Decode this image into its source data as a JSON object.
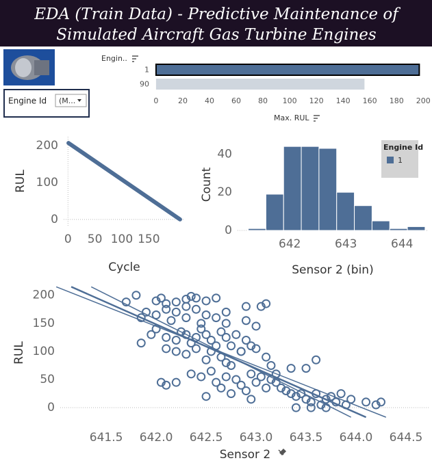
{
  "header": {
    "title_lines": [
      "EDA (Train Data) - Predictive Maintenance of",
      "Simulated Aircraft Gas Turbine Engines"
    ]
  },
  "filter": {
    "label": "Engine Id",
    "value": "(M..."
  },
  "chart_data": [
    {
      "type": "bar",
      "orientation": "horizontal",
      "category_header": "Engin..",
      "x_label": "Max. RUL",
      "categories": [
        "1",
        "90"
      ],
      "values": [
        197,
        156
      ],
      "colors": [
        "#4e6e96",
        "#cfd6de"
      ],
      "xlim": [
        -1.5,
        205
      ],
      "xticks": [
        0,
        20,
        40,
        60,
        80,
        100,
        120,
        140,
        160,
        180,
        200
      ]
    },
    {
      "type": "line",
      "x_label": "Cycle",
      "y_label": "RUL",
      "color": "#4e6e96",
      "x": [
        1,
        208
      ],
      "values": [
        207,
        0
      ],
      "xlim": [
        -8,
        217
      ],
      "xticks": [
        0,
        50,
        100,
        150
      ],
      "ylim": [
        -17,
        224
      ],
      "yticks": [
        0,
        100,
        200
      ]
    },
    {
      "type": "histogram",
      "x_label": "Sensor 2 (bin)",
      "y_label": "Count",
      "legend_title": "Engine Id",
      "series": [
        {
          "name": "1",
          "color": "#4e6e96"
        }
      ],
      "bins": [
        641.26,
        641.575,
        641.89,
        642.205,
        642.52,
        642.835,
        643.15,
        643.465,
        643.78,
        644.095,
        644.41
      ],
      "counts": [
        1,
        19,
        44,
        44,
        43,
        20,
        13,
        5,
        1,
        2
      ],
      "xlim": [
        641.07,
        644.46
      ],
      "xticks": [
        642,
        643,
        644
      ],
      "ylim": [
        0,
        48
      ],
      "yticks": [
        0,
        20,
        40
      ]
    },
    {
      "type": "scatter",
      "x_label": "Sensor 2",
      "y_label": "RUL",
      "color": "#4e6e96",
      "x": [
        641.8,
        641.7,
        642.0,
        642.05,
        642.1,
        642.2,
        642.3,
        642.35,
        642.4,
        642.5,
        642.6,
        642.1,
        642.2,
        642.3,
        642.4,
        642.5,
        642.0,
        641.9,
        641.85,
        642.15,
        642.3,
        642.45,
        642.6,
        642.7,
        642.9,
        643.05,
        643.1,
        642.7,
        642.9,
        643.0,
        641.85,
        641.95,
        642.0,
        642.1,
        642.2,
        642.25,
        642.3,
        642.35,
        642.4,
        642.45,
        642.5,
        642.55,
        642.6,
        642.65,
        642.7,
        642.75,
        642.8,
        642.85,
        642.9,
        643.0,
        642.2,
        642.1,
        642.3,
        642.4,
        642.5,
        642.55,
        642.65,
        642.7,
        642.75,
        642.85,
        642.95,
        643.1,
        643.15,
        643.2,
        643.35,
        643.5,
        643.6,
        642.1,
        642.2,
        642.35,
        642.45,
        642.55,
        642.6,
        642.7,
        642.8,
        642.85,
        642.9,
        642.95,
        643.0,
        643.05,
        643.1,
        643.15,
        643.2,
        643.3,
        643.35,
        643.4,
        643.45,
        643.5,
        643.55,
        643.6,
        643.65,
        643.7,
        643.75,
        643.8,
        643.85,
        643.9,
        643.95,
        644.1,
        644.2,
        644.25,
        643.4,
        643.55,
        643.7,
        642.75,
        642.65,
        642.5,
        642.95,
        643.25,
        642.05
      ],
      "values": [
        200,
        188,
        190,
        195,
        185,
        188,
        193,
        198,
        195,
        190,
        195,
        175,
        170,
        180,
        175,
        165,
        165,
        170,
        160,
        155,
        160,
        150,
        160,
        170,
        180,
        180,
        185,
        150,
        155,
        145,
        115,
        130,
        140,
        125,
        120,
        135,
        130,
        115,
        125,
        140,
        130,
        120,
        110,
        135,
        125,
        110,
        130,
        100,
        120,
        105,
        100,
        105,
        95,
        105,
        85,
        100,
        90,
        80,
        75,
        100,
        110,
        90,
        75,
        60,
        70,
        70,
        85,
        40,
        45,
        60,
        55,
        65,
        45,
        55,
        50,
        40,
        30,
        60,
        45,
        55,
        35,
        50,
        45,
        30,
        25,
        20,
        25,
        15,
        10,
        25,
        5,
        15,
        20,
        10,
        25,
        5,
        15,
        10,
        5,
        10,
        0,
        0,
        0,
        25,
        35,
        20,
        15,
        35,
        45
      ],
      "trend_lines": [
        {
          "x": [
            641.15,
            644.1
          ],
          "values": [
            215,
            -17
          ]
        },
        {
          "x": [
            641.35,
            643.95
          ],
          "values": [
            215,
            -17
          ]
        },
        {
          "x": [
            641.0,
            644.3
          ],
          "values": [
            215,
            -17
          ]
        }
      ],
      "xlim": [
        641.04,
        644.74
      ],
      "xticks": [
        641.5,
        {
          "value": 642,
          "label": "642.0"
        },
        642.5,
        {
          "value": 643,
          "label": "643.0"
        },
        643.5,
        {
          "value": 644,
          "label": "644.0"
        },
        644.5
      ],
      "ylim": [
        -29,
        224
      ],
      "yticks": [
        0,
        50,
        100,
        150,
        200
      ]
    }
  ]
}
